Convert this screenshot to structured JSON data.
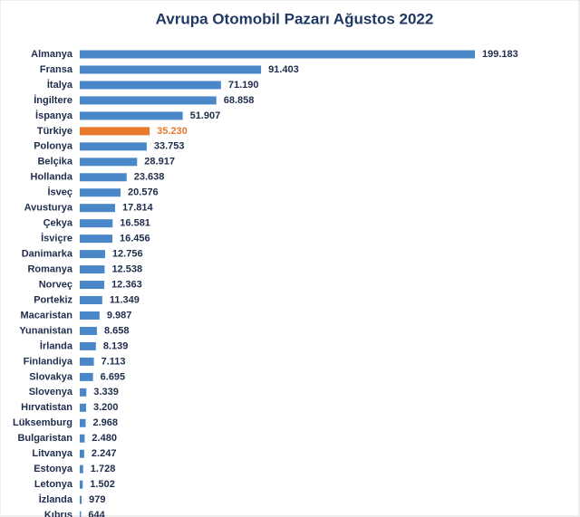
{
  "chart_data": {
    "type": "bar",
    "orientation": "horizontal",
    "title": "Avrupa Otomobil Pazarı Ağustos 2022",
    "categories": [
      "Almanya",
      "Fransa",
      "İtalya",
      "İngiltere",
      "İspanya",
      "Türkiye",
      "Polonya",
      "Belçika",
      "Hollanda",
      "İsveç",
      "Avusturya",
      "Çekya",
      "İsviçre",
      "Danimarka",
      "Romanya",
      "Norveç",
      "Portekiz",
      "Macaristan",
      "Yunanistan",
      "İrlanda",
      "Finlandiya",
      "Slovakya",
      "Slovenya",
      "Hırvatistan",
      "Lüksemburg",
      "Bulgaristan",
      "Litvanya",
      "Estonya",
      "Letonya",
      "İzlanda",
      "Kıbrıs"
    ],
    "values": [
      199183,
      91403,
      71190,
      68858,
      51907,
      35230,
      33753,
      28917,
      23638,
      20576,
      17814,
      16581,
      16456,
      12756,
      12538,
      12363,
      11349,
      9987,
      8658,
      8139,
      7113,
      6695,
      3339,
      3200,
      2968,
      2480,
      2247,
      1728,
      1502,
      979,
      644
    ],
    "value_labels": [
      "199.183",
      "91.403",
      "71.190",
      "68.858",
      "51.907",
      "35.230",
      "33.753",
      "28.917",
      "23.638",
      "20.576",
      "17.814",
      "16.581",
      "16.456",
      "12.756",
      "12.538",
      "12.363",
      "11.349",
      "9.987",
      "8.658",
      "8.139",
      "7.113",
      "6.695",
      "3.339",
      "3.200",
      "2.968",
      "2.480",
      "2.247",
      "1.728",
      "1.502",
      "979",
      "644"
    ],
    "color": "#4a87c9",
    "colors": [
      "#4a87c9",
      "#4a87c9",
      "#4a87c9",
      "#4a87c9",
      "#4a87c9",
      "#e8782a",
      "#4a87c9",
      "#4a87c9",
      "#4a87c9",
      "#4a87c9",
      "#4a87c9",
      "#4a87c9",
      "#4a87c9",
      "#4a87c9",
      "#4a87c9",
      "#4a87c9",
      "#4a87c9",
      "#4a87c9",
      "#4a87c9",
      "#4a87c9",
      "#4a87c9",
      "#4a87c9",
      "#4a87c9",
      "#4a87c9",
      "#4a87c9",
      "#4a87c9",
      "#4a87c9",
      "#4a87c9",
      "#4a87c9",
      "#4a87c9",
      "#4a87c9"
    ]
  }
}
